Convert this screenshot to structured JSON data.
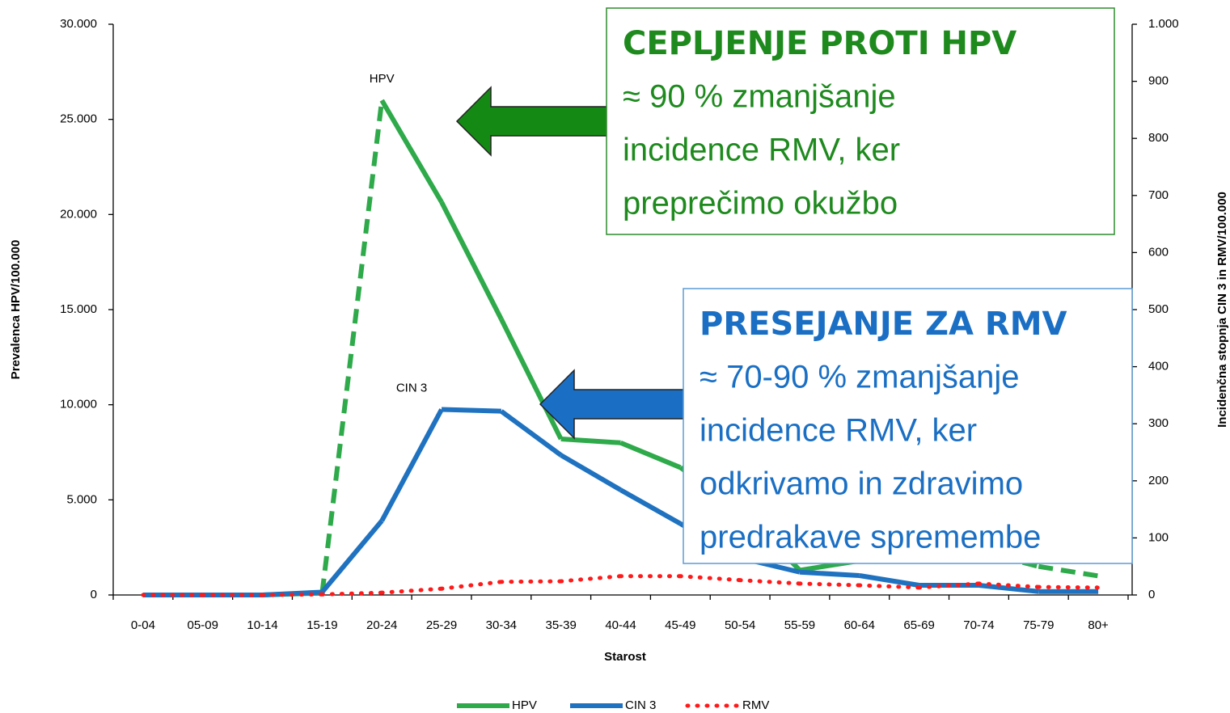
{
  "chart_data": {
    "type": "line",
    "categories": [
      "0-04",
      "05-09",
      "10-14",
      "15-19",
      "20-24",
      "25-29",
      "30-34",
      "35-39",
      "40-44",
      "45-49",
      "50-54",
      "55-59",
      "60-64",
      "65-69",
      "70-74",
      "75-79",
      "80+"
    ],
    "x_label": "Starost",
    "y_label": "Prevalenca HPV/100.000",
    "y2_label": "Incidenčna stopnja CIN 3 in RMV/100.000",
    "ylim": [
      0,
      30000
    ],
    "yticks": [
      {
        "value": 0,
        "label": "0"
      },
      {
        "value": 5000,
        "label": "5.000"
      },
      {
        "value": 10000,
        "label": "10.000"
      },
      {
        "value": 15000,
        "label": "15.000"
      },
      {
        "value": 20000,
        "label": "20.000"
      },
      {
        "value": 25000,
        "label": "25.000"
      },
      {
        "value": 30000,
        "label": "30.000"
      }
    ],
    "y2lim": [
      0,
      1000
    ],
    "y2ticks": [
      0,
      100,
      200,
      300,
      400,
      500,
      600,
      700,
      800,
      900,
      {
        "value": 1000,
        "label": "1.000"
      }
    ],
    "series": [
      {
        "name": "HPV",
        "color": "#2eaa4a",
        "style": "solid",
        "dashed_segments": [
          3,
          14,
          15
        ],
        "values": [
          0,
          0,
          0,
          100,
          26000,
          20650,
          14500,
          8200,
          8000,
          6700,
          4500,
          1300,
          1800,
          2200,
          2300,
          1500,
          1000
        ]
      },
      {
        "name": "CIN 3",
        "color": "#1f72c0",
        "axis": "y2",
        "style": "solid",
        "values": [
          0,
          0,
          0,
          5,
          130,
          325,
          322,
          245,
          184,
          125,
          65,
          40,
          34,
          17,
          17,
          6,
          6
        ]
      },
      {
        "name": "RMV",
        "color": "#ff1a1a",
        "axis": "y2",
        "style": "dotted",
        "values": [
          0,
          0,
          0,
          1,
          4,
          11,
          23,
          24,
          33,
          33,
          26,
          20,
          17,
          13,
          20,
          14,
          13
        ]
      }
    ],
    "series_labels": [
      {
        "text": "HPV",
        "series": 0
      },
      {
        "text": "CIN 3",
        "series": 1
      }
    ],
    "callouts": [
      {
        "title": "CEPLJENJE PROTI HPV",
        "lines": [
          " ≈ 90 % zmanjšanje",
          "incidence RMV, ker",
          "preprečimo okužbo"
        ],
        "color": "#1e8a1e",
        "border": "#2e8b2e",
        "arrow": "#148a14"
      },
      {
        "title": "PRESEJANJE ZA RMV",
        "lines": [
          "≈ 70-90 % zmanjšanje",
          "incidence RMV, ker",
          "odkrivamo in zdravimo",
          "predrakave spremembe"
        ],
        "color": "#1a6fc4",
        "border": "#5b9bd5",
        "arrow": "#1a6fc4"
      }
    ]
  }
}
